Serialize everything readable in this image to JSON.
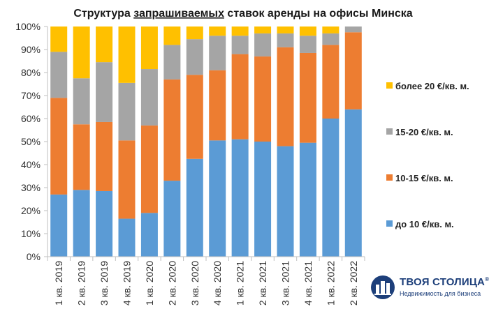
{
  "chart_data": {
    "type": "bar",
    "stacked": true,
    "percent": true,
    "title_parts": {
      "before": "Структура ",
      "underlined": "запрашиваемых",
      "after": " ставок аренды на офисы Минска"
    },
    "categories": [
      "1 кв. 2019",
      "2 кв. 2019",
      "3 кв. 2019",
      "4 кв. 2019",
      "1 кв. 2020",
      "2 кв. 2020",
      "3 кв. 2020",
      "4 кв. 2020",
      "1 кв. 2021",
      "2 кв. 2021",
      "3 кв. 2021",
      "4 кв. 2021",
      "1 кв. 2022",
      "2 кв. 2022"
    ],
    "series": [
      {
        "name": "до 10 €/кв. м.",
        "color": "#5b9bd5",
        "values": [
          27,
          29,
          28.5,
          16.5,
          19,
          33,
          42.5,
          50.5,
          51,
          50,
          48,
          49.5,
          60,
          64
        ]
      },
      {
        "name": "10-15 €/кв. м.",
        "color": "#ed7d31",
        "values": [
          42,
          28.5,
          30,
          34,
          38,
          44,
          36.5,
          30.5,
          37,
          37,
          43,
          39,
          32,
          33.5
        ]
      },
      {
        "name": "15-20 €/кв. м.",
        "color": "#a5a5a5",
        "values": [
          20,
          20,
          26,
          25,
          24.5,
          15,
          15.5,
          15,
          8,
          10,
          6,
          7.5,
          5,
          2.5
        ]
      },
      {
        "name": "более 20 €/кв. м.",
        "color": "#ffc000",
        "values": [
          11,
          22.5,
          15.5,
          24.5,
          18.5,
          8,
          5.5,
          4,
          4,
          3,
          3,
          4,
          3,
          0
        ]
      }
    ],
    "legend_order": [
      3,
      2,
      1,
      0
    ],
    "legend_position": "right",
    "ylim": [
      0,
      100
    ],
    "y_ticks": [
      "0%",
      "10%",
      "20%",
      "30%",
      "40%",
      "50%",
      "60%",
      "70%",
      "80%",
      "90%",
      "100%"
    ],
    "xlabel": "",
    "ylabel": ""
  },
  "brand": {
    "name": "ТВОЯ СТОЛИЦА",
    "mark": "®",
    "tagline": "Недвижимость для бизнеса"
  },
  "colors": {
    "axis": "#bfbfbf",
    "brand": "#1d3f7a"
  }
}
